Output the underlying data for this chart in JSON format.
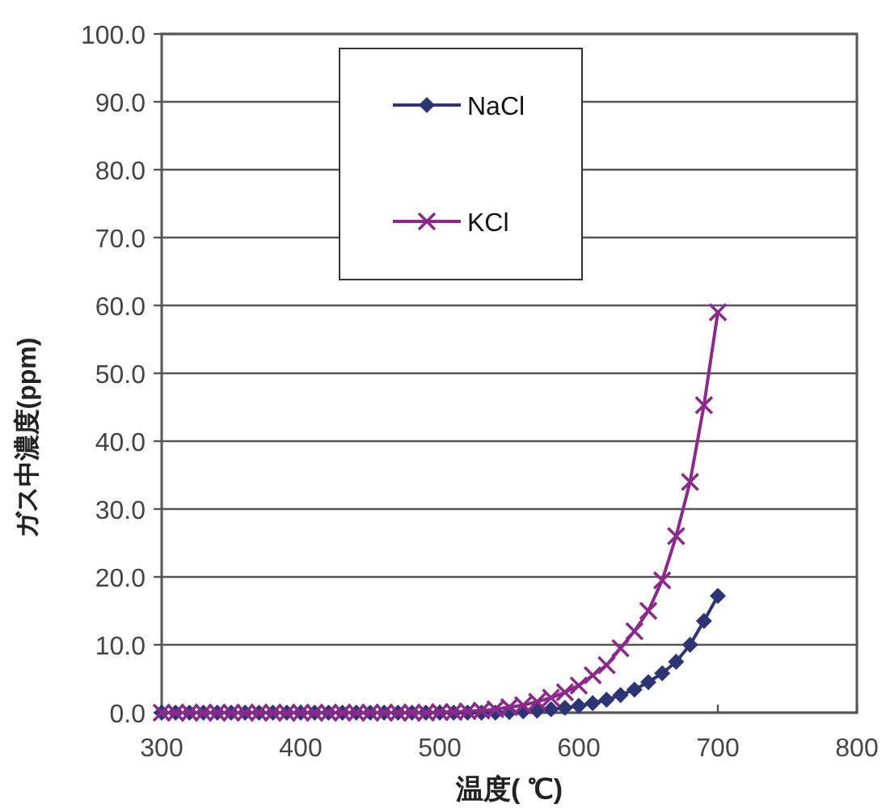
{
  "chart_data": {
    "type": "line",
    "xlabel": "温度( ℃)",
    "ylabel": "ガス中濃度(ppm)",
    "x": [
      300,
      310,
      320,
      330,
      340,
      350,
      360,
      370,
      380,
      390,
      400,
      410,
      420,
      430,
      440,
      450,
      460,
      470,
      480,
      490,
      500,
      510,
      520,
      530,
      540,
      550,
      560,
      570,
      580,
      590,
      600,
      610,
      620,
      630,
      640,
      650,
      660,
      670,
      680,
      690,
      700
    ],
    "series": [
      {
        "name": "NaCl",
        "color": "#2e3575",
        "marker": "diamond",
        "values": [
          0,
          0,
          0,
          0,
          0,
          0,
          0,
          0,
          0,
          0,
          0,
          0,
          0,
          0,
          0,
          0,
          0,
          0,
          0,
          0,
          0,
          0,
          0,
          0,
          0,
          0.1,
          0.2,
          0.3,
          0.5,
          0.7,
          1.0,
          1.4,
          1.9,
          2.6,
          3.4,
          4.5,
          5.8,
          7.5,
          10.0,
          13.5,
          17.2
        ]
      },
      {
        "name": "KCl",
        "color": "#8b2a8b",
        "marker": "cross",
        "values": [
          0,
          0,
          0,
          0,
          0,
          0,
          0,
          0,
          0,
          0,
          0,
          0,
          0,
          0,
          0,
          0,
          0,
          0,
          0,
          0,
          0.1,
          0.1,
          0.2,
          0.3,
          0.5,
          0.8,
          1.1,
          1.6,
          2.2,
          3.0,
          4.0,
          5.5,
          7.0,
          9.5,
          12.0,
          15.0,
          19.5,
          26.0,
          34.0,
          45.3,
          59.0
        ]
      }
    ],
    "xlim": [
      300,
      800
    ],
    "xticks": [
      300,
      400,
      500,
      600,
      700,
      800
    ],
    "ylim": [
      0,
      100
    ],
    "yticks": [
      {
        "value": 0,
        "label": "0.0"
      },
      {
        "value": 10,
        "label": "10.0"
      },
      {
        "value": 20,
        "label": "20.0"
      },
      {
        "value": 30,
        "label": "30.0"
      },
      {
        "value": 40,
        "label": "40.0"
      },
      {
        "value": 50,
        "label": "50.0"
      },
      {
        "value": 60,
        "label": "60.0"
      },
      {
        "value": 70,
        "label": "70.0"
      },
      {
        "value": 80,
        "label": "80.0"
      },
      {
        "value": 90,
        "label": "90.0"
      },
      {
        "value": 100,
        "label": "100.0"
      }
    ],
    "grid": "y",
    "legend": "top"
  }
}
